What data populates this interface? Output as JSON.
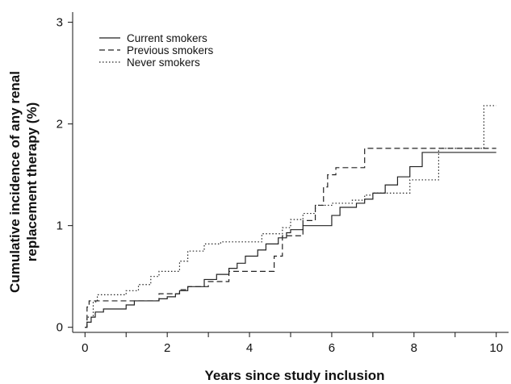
{
  "chart_data": {
    "type": "line",
    "title": "",
    "xlabel": "Years since study inclusion",
    "ylabel": "Cumulative incidence of any renal replacement therapy (%)",
    "ylabel_lines": [
      "Cumulative incidence of any renal",
      "replacement therapy (%)"
    ],
    "xlim": [
      -0.3,
      10.3
    ],
    "ylim": [
      -0.05,
      3.1
    ],
    "xticks": [
      0,
      2,
      4,
      6,
      8,
      10
    ],
    "xticks_minor": [
      1,
      3,
      5,
      7,
      9
    ],
    "yticks": [
      0,
      1,
      2,
      3
    ],
    "grid": false,
    "legend_position": "top-left",
    "step": true,
    "series": [
      {
        "name": "Current smokers",
        "style": "solid",
        "x": [
          0,
          0.05,
          0.15,
          0.25,
          0.45,
          1.0,
          1.2,
          1.8,
          2.0,
          2.2,
          2.3,
          2.5,
          2.9,
          3.2,
          3.5,
          3.7,
          3.9,
          4.2,
          4.4,
          4.7,
          4.9,
          5.0,
          5.3,
          5.5,
          6.0,
          6.2,
          6.6,
          6.8,
          7.0,
          7.3,
          7.6,
          7.9,
          8.2,
          10.0
        ],
        "y": [
          0.0,
          0.05,
          0.1,
          0.15,
          0.18,
          0.22,
          0.26,
          0.28,
          0.3,
          0.33,
          0.36,
          0.4,
          0.47,
          0.52,
          0.58,
          0.63,
          0.7,
          0.76,
          0.82,
          0.88,
          0.93,
          0.96,
          1.0,
          1.0,
          1.1,
          1.18,
          1.22,
          1.26,
          1.32,
          1.4,
          1.48,
          1.58,
          1.72,
          1.72
        ]
      },
      {
        "name": "Previous smokers",
        "style": "dashed",
        "x": [
          0,
          0.05,
          0.1,
          1.5,
          1.8,
          2.3,
          2.5,
          3.0,
          3.5,
          4.6,
          4.8,
          5.3,
          5.6,
          5.8,
          5.9,
          6.1,
          6.8,
          10.0
        ],
        "y": [
          0.0,
          0.2,
          0.26,
          0.26,
          0.33,
          0.37,
          0.4,
          0.45,
          0.55,
          0.7,
          0.9,
          1.05,
          1.2,
          1.38,
          1.5,
          1.57,
          1.76,
          1.76
        ]
      },
      {
        "name": "Never smokers",
        "style": "dotted",
        "x": [
          0,
          0.05,
          0.2,
          0.3,
          1.0,
          1.3,
          1.6,
          1.8,
          2.3,
          2.5,
          2.9,
          3.3,
          4.3,
          4.8,
          5.0,
          5.3,
          5.6,
          6.0,
          6.5,
          6.8,
          7.0,
          7.9,
          8.6,
          9.7,
          10.0
        ],
        "y": [
          0.0,
          0.1,
          0.25,
          0.32,
          0.36,
          0.42,
          0.5,
          0.55,
          0.65,
          0.75,
          0.82,
          0.84,
          0.92,
          0.98,
          1.06,
          1.12,
          1.2,
          1.22,
          1.25,
          1.3,
          1.32,
          1.45,
          1.76,
          2.18,
          2.18
        ]
      }
    ]
  }
}
